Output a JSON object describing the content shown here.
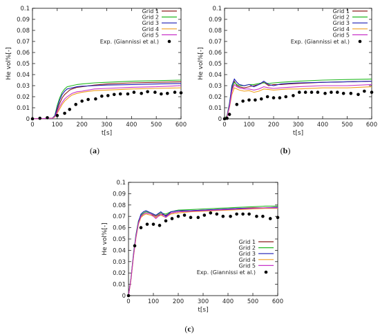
{
  "chart_data": [
    {
      "id": "a",
      "type": "line",
      "caption_letter": "a",
      "xlabel": "t[s]",
      "ylabel": "He vol%[-]",
      "xlim": [
        0,
        600
      ],
      "ylim": [
        0,
        0.1
      ],
      "xticks": [
        0,
        100,
        200,
        300,
        400,
        500,
        600
      ],
      "xtick_labels": [
        "0",
        "100",
        "200",
        "300",
        "400",
        "500",
        "600"
      ],
      "yticks": [
        0,
        0.01,
        0.02,
        0.03,
        0.04,
        0.05,
        0.06,
        0.07,
        0.08,
        0.09,
        0.1
      ],
      "ytick_labels": [
        "0",
        "0.01",
        "0.02",
        "0.03",
        "0.04",
        "0.05",
        "0.06",
        "0.07",
        "0.08",
        "0.09",
        "0.1"
      ],
      "legend_position": "top-right",
      "series": [
        {
          "name": "Grid 1",
          "color": "#8b1a1a",
          "x": [
            0,
            80,
            90,
            100,
            110,
            120,
            130,
            140,
            150,
            160,
            180,
            200,
            250,
            300,
            400,
            500,
            600
          ],
          "y": [
            0,
            0.0005,
            0.002,
            0.008,
            0.014,
            0.019,
            0.022,
            0.024,
            0.026,
            0.027,
            0.0285,
            0.029,
            0.0305,
            0.0315,
            0.0325,
            0.033,
            0.0335
          ]
        },
        {
          "name": "Grid 2",
          "color": "#22b822",
          "x": [
            0,
            80,
            90,
            100,
            110,
            120,
            130,
            140,
            150,
            160,
            180,
            200,
            250,
            300,
            400,
            500,
            600
          ],
          "y": [
            0,
            0.0005,
            0.003,
            0.012,
            0.019,
            0.024,
            0.027,
            0.029,
            0.0295,
            0.03,
            0.031,
            0.0315,
            0.0325,
            0.033,
            0.034,
            0.0345,
            0.035
          ]
        },
        {
          "name": "Grid 3",
          "color": "#1c1cb4",
          "x": [
            0,
            80,
            90,
            100,
            110,
            120,
            130,
            140,
            150,
            160,
            180,
            200,
            250,
            300,
            400,
            500,
            600
          ],
          "y": [
            0,
            0.0005,
            0.0025,
            0.01,
            0.017,
            0.022,
            0.025,
            0.027,
            0.0275,
            0.028,
            0.029,
            0.0295,
            0.03,
            0.0305,
            0.031,
            0.0315,
            0.032
          ]
        },
        {
          "name": "Grid 4",
          "color": "#f0a020",
          "x": [
            0,
            80,
            90,
            100,
            110,
            120,
            130,
            140,
            150,
            160,
            180,
            200,
            250,
            300,
            400,
            500,
            600
          ],
          "y": [
            0,
            0.0005,
            0.0015,
            0.005,
            0.009,
            0.013,
            0.016,
            0.018,
            0.02,
            0.0215,
            0.023,
            0.024,
            0.0255,
            0.026,
            0.027,
            0.0275,
            0.028
          ]
        },
        {
          "name": "Grid 5",
          "color": "#c832c8",
          "x": [
            0,
            80,
            90,
            100,
            110,
            120,
            130,
            140,
            150,
            160,
            180,
            200,
            250,
            300,
            400,
            500,
            600
          ],
          "y": [
            0,
            0.0005,
            0.002,
            0.006,
            0.011,
            0.015,
            0.018,
            0.02,
            0.0215,
            0.023,
            0.0245,
            0.025,
            0.027,
            0.0275,
            0.0285,
            0.029,
            0.03
          ]
        }
      ],
      "points": {
        "name": "Exp. (Giannissi et al.)",
        "color": "#000000",
        "x": [
          0,
          30,
          60,
          100,
          130,
          150,
          175,
          200,
          225,
          255,
          280,
          305,
          330,
          355,
          385,
          410,
          440,
          465,
          495,
          520,
          545,
          575,
          600
        ],
        "y": [
          0,
          0.0005,
          0.001,
          0.003,
          0.005,
          0.0085,
          0.013,
          0.016,
          0.0175,
          0.018,
          0.0205,
          0.021,
          0.022,
          0.0225,
          0.0225,
          0.024,
          0.023,
          0.0245,
          0.024,
          0.0225,
          0.023,
          0.024,
          0.0235
        ]
      }
    },
    {
      "id": "b",
      "type": "line",
      "caption_letter": "b",
      "xlabel": "t[s]",
      "ylabel": "He vol%[-]",
      "xlim": [
        0,
        600
      ],
      "ylim": [
        0,
        0.1
      ],
      "xticks": [
        0,
        100,
        200,
        300,
        400,
        500,
        600
      ],
      "xtick_labels": [
        "0",
        "100",
        "200",
        "300",
        "400",
        "500",
        "600"
      ],
      "yticks": [
        0,
        0.01,
        0.02,
        0.03,
        0.04,
        0.05,
        0.06,
        0.07,
        0.08,
        0.09,
        0.1
      ],
      "ytick_labels": [
        "0",
        "0.01",
        "0.02",
        "0.03",
        "0.04",
        "0.05",
        "0.06",
        "0.07",
        "0.08",
        "0.09",
        "0.1"
      ],
      "legend_position": "top-right",
      "series": [
        {
          "name": "Grid 1",
          "color": "#8b1a1a",
          "x": [
            0,
            10,
            20,
            30,
            40,
            50,
            60,
            80,
            100,
            120,
            140,
            160,
            180,
            200,
            230,
            260,
            300,
            400,
            500,
            600
          ],
          "y": [
            0,
            0.002,
            0.012,
            0.027,
            0.034,
            0.03,
            0.029,
            0.028,
            0.029,
            0.03,
            0.031,
            0.033,
            0.03,
            0.031,
            0.031,
            0.0315,
            0.032,
            0.033,
            0.0335,
            0.034
          ]
        },
        {
          "name": "Grid 2",
          "color": "#22b822",
          "x": [
            0,
            10,
            20,
            30,
            40,
            50,
            60,
            80,
            100,
            120,
            140,
            160,
            180,
            200,
            230,
            260,
            300,
            400,
            500,
            600
          ],
          "y": [
            0,
            0.003,
            0.014,
            0.029,
            0.033,
            0.031,
            0.03,
            0.03,
            0.031,
            0.031,
            0.032,
            0.0325,
            0.032,
            0.0325,
            0.033,
            0.0335,
            0.034,
            0.035,
            0.0355,
            0.036
          ]
        },
        {
          "name": "Grid 3",
          "color": "#1c1cb4",
          "x": [
            0,
            10,
            20,
            30,
            40,
            50,
            60,
            80,
            100,
            120,
            140,
            160,
            180,
            200,
            230,
            260,
            300,
            400,
            500,
            600
          ],
          "y": [
            0,
            0.002,
            0.013,
            0.03,
            0.036,
            0.033,
            0.031,
            0.03,
            0.031,
            0.029,
            0.031,
            0.034,
            0.031,
            0.03,
            0.0315,
            0.032,
            0.0325,
            0.033,
            0.0335,
            0.034
          ]
        },
        {
          "name": "Grid 4",
          "color": "#f0a020",
          "x": [
            0,
            10,
            20,
            30,
            40,
            50,
            60,
            80,
            100,
            120,
            140,
            160,
            180,
            200,
            230,
            260,
            300,
            400,
            500,
            600
          ],
          "y": [
            0,
            0.002,
            0.01,
            0.022,
            0.028,
            0.027,
            0.026,
            0.025,
            0.0255,
            0.024,
            0.025,
            0.027,
            0.0265,
            0.026,
            0.0265,
            0.027,
            0.027,
            0.028,
            0.028,
            0.029
          ]
        },
        {
          "name": "Grid 5",
          "color": "#c832c8",
          "x": [
            0,
            10,
            20,
            30,
            40,
            50,
            60,
            80,
            100,
            120,
            140,
            160,
            180,
            200,
            230,
            260,
            300,
            400,
            500,
            600
          ],
          "y": [
            0,
            0.002,
            0.011,
            0.025,
            0.031,
            0.029,
            0.028,
            0.027,
            0.027,
            0.026,
            0.027,
            0.029,
            0.028,
            0.0275,
            0.028,
            0.0285,
            0.029,
            0.03,
            0.03,
            0.031
          ]
        }
      ],
      "points": {
        "name": "Exp. (Giannissi et al.)",
        "color": "#000000",
        "x": [
          0,
          10,
          20,
          50,
          75,
          100,
          125,
          150,
          175,
          200,
          225,
          250,
          280,
          305,
          330,
          355,
          380,
          410,
          435,
          460,
          485,
          515,
          545,
          570,
          600
        ],
        "y": [
          0,
          0.0005,
          0.004,
          0.013,
          0.016,
          0.017,
          0.017,
          0.018,
          0.02,
          0.019,
          0.019,
          0.02,
          0.021,
          0.024,
          0.024,
          0.024,
          0.024,
          0.023,
          0.024,
          0.024,
          0.023,
          0.023,
          0.022,
          0.025,
          0.024
        ]
      }
    },
    {
      "id": "c",
      "type": "line",
      "caption_letter": "c",
      "xlabel": "t[s]",
      "ylabel": "He vol%[-]",
      "xlim": [
        0,
        600
      ],
      "ylim": [
        0,
        0.1
      ],
      "xticks": [
        0,
        100,
        200,
        300,
        400,
        500,
        600
      ],
      "xtick_labels": [
        "0",
        "100",
        "200",
        "300",
        "400",
        "500",
        "600"
      ],
      "yticks": [
        0,
        0.01,
        0.02,
        0.03,
        0.04,
        0.05,
        0.06,
        0.07,
        0.08,
        0.09,
        0.1
      ],
      "ytick_labels": [
        "0",
        "0.01",
        "0.02",
        "0.03",
        "0.04",
        "0.05",
        "0.06",
        "0.07",
        "0.08",
        "0.09",
        "0.1"
      ],
      "legend_position": "bottom-right",
      "series": [
        {
          "name": "Grid 1",
          "color": "#8b1a1a",
          "x": [
            0,
            10,
            20,
            30,
            40,
            50,
            60,
            70,
            90,
            110,
            130,
            150,
            170,
            200,
            250,
            300,
            350,
            400,
            450,
            500,
            550,
            600
          ],
          "y": [
            0,
            0.015,
            0.035,
            0.052,
            0.064,
            0.07,
            0.072,
            0.073,
            0.072,
            0.07,
            0.072,
            0.071,
            0.073,
            0.074,
            0.075,
            0.0755,
            0.076,
            0.0765,
            0.077,
            0.0775,
            0.0775,
            0.078
          ]
        },
        {
          "name": "Grid 2",
          "color": "#22b822",
          "x": [
            0,
            10,
            20,
            30,
            40,
            50,
            60,
            70,
            90,
            110,
            130,
            150,
            170,
            200,
            250,
            300,
            350,
            400,
            450,
            500,
            550,
            600
          ],
          "y": [
            0,
            0.016,
            0.037,
            0.054,
            0.066,
            0.071,
            0.073,
            0.074,
            0.073,
            0.071,
            0.073,
            0.072,
            0.074,
            0.0755,
            0.076,
            0.0765,
            0.077,
            0.0775,
            0.078,
            0.0785,
            0.079,
            0.079
          ]
        },
        {
          "name": "Grid 3",
          "color": "#1c1cb4",
          "x": [
            0,
            10,
            20,
            30,
            40,
            50,
            60,
            70,
            90,
            110,
            130,
            150,
            170,
            200,
            250,
            300,
            350,
            400,
            450,
            500,
            550,
            600
          ],
          "y": [
            0,
            0.015,
            0.036,
            0.053,
            0.065,
            0.072,
            0.074,
            0.075,
            0.073,
            0.071,
            0.074,
            0.07,
            0.074,
            0.075,
            0.075,
            0.0755,
            0.076,
            0.0765,
            0.077,
            0.077,
            0.0775,
            0.078
          ]
        },
        {
          "name": "Grid 4",
          "color": "#f0a020",
          "x": [
            0,
            10,
            20,
            30,
            40,
            50,
            60,
            70,
            90,
            110,
            130,
            150,
            170,
            200,
            250,
            300,
            350,
            400,
            450,
            500,
            550,
            600
          ],
          "y": [
            0,
            0.014,
            0.034,
            0.051,
            0.063,
            0.069,
            0.071,
            0.072,
            0.071,
            0.069,
            0.071,
            0.069,
            0.072,
            0.073,
            0.074,
            0.0745,
            0.075,
            0.0755,
            0.076,
            0.0765,
            0.077,
            0.077
          ]
        },
        {
          "name": "Grid 5",
          "color": "#c832c8",
          "x": [
            0,
            10,
            20,
            30,
            40,
            50,
            60,
            70,
            90,
            110,
            130,
            150,
            170,
            200,
            250,
            300,
            350,
            400,
            450,
            500,
            550,
            600
          ],
          "y": [
            0,
            0.015,
            0.035,
            0.052,
            0.064,
            0.07,
            0.072,
            0.073,
            0.072,
            0.068,
            0.072,
            0.069,
            0.073,
            0.074,
            0.0745,
            0.075,
            0.0755,
            0.076,
            0.0765,
            0.077,
            0.0775,
            0.0775
          ]
        }
      ],
      "points": {
        "name": "Exp. (Giannissi et al.)",
        "color": "#000000",
        "x": [
          0,
          25,
          50,
          75,
          100,
          125,
          150,
          175,
          200,
          225,
          250,
          280,
          305,
          330,
          355,
          380,
          410,
          435,
          460,
          485,
          515,
          540,
          570,
          600
        ],
        "y": [
          0,
          0.044,
          0.06,
          0.063,
          0.063,
          0.062,
          0.066,
          0.068,
          0.07,
          0.071,
          0.069,
          0.069,
          0.071,
          0.073,
          0.072,
          0.07,
          0.07,
          0.072,
          0.072,
          0.072,
          0.07,
          0.07,
          0.068,
          0.069
        ]
      }
    }
  ]
}
